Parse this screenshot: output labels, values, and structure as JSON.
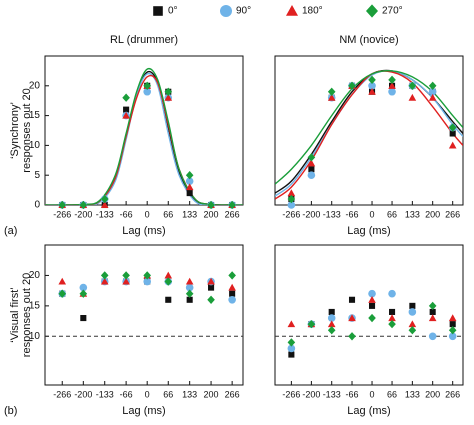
{
  "legend": [
    {
      "name": "0°",
      "color": "#111111",
      "marker": "square"
    },
    {
      "name": "90°",
      "color": "#6fb3e8",
      "marker": "circle"
    },
    {
      "name": "180°",
      "color": "#e02020",
      "marker": "triangle"
    },
    {
      "name": "270°",
      "color": "#1a9e3a",
      "marker": "diamond"
    }
  ],
  "chart_data": [
    {
      "type": "scatter",
      "title": "RL (drummer)",
      "xlabel": "Lag (ms)",
      "ylabel": [
        "‘Synchrony’",
        "responses out 20"
      ],
      "panel_label": "(a)",
      "x": [
        -266,
        -200,
        -133,
        -66,
        0,
        66,
        133,
        200,
        266
      ],
      "xlim": [
        -320,
        300
      ],
      "ylim": [
        0,
        25
      ],
      "xticks": [
        -266,
        -200,
        -133,
        -66,
        0,
        66,
        133,
        200,
        266
      ],
      "yticks": [
        0,
        5,
        10,
        15,
        20
      ],
      "fit_x": [
        -320,
        -266,
        -200,
        -150,
        -100,
        -66,
        -33,
        0,
        33,
        66,
        100,
        150,
        200,
        266,
        300
      ],
      "series": [
        {
          "values": [
            0,
            0,
            0,
            16,
            20,
            19,
            2,
            0,
            0
          ],
          "fit": [
            0,
            0,
            0.1,
            0.5,
            4.5,
            11.5,
            18.5,
            22.3,
            20.5,
            13,
            5.5,
            0.8,
            0.1,
            0,
            0
          ]
        },
        {
          "values": [
            0,
            0,
            1,
            15,
            19,
            18,
            4,
            0,
            0
          ],
          "fit": [
            0,
            0,
            0,
            0.4,
            4,
            11,
            18.5,
            22,
            20,
            12,
            5,
            0.6,
            0,
            0,
            0
          ]
        },
        {
          "values": [
            0,
            0,
            0,
            15,
            20,
            18,
            3,
            0,
            0
          ],
          "fit": [
            0,
            0,
            0.1,
            0.6,
            4.5,
            11.5,
            18,
            21.5,
            20.5,
            13.5,
            6,
            1,
            0.1,
            0,
            0
          ]
        },
        {
          "values": [
            0,
            0,
            1,
            18,
            20,
            19,
            5,
            0,
            0
          ],
          "fit": [
            0,
            0,
            0.1,
            0.7,
            5,
            12,
            19,
            22.8,
            21,
            14,
            6,
            1,
            0.1,
            0,
            0
          ]
        }
      ]
    },
    {
      "type": "scatter",
      "title": "NM (novice)",
      "xlabel": "Lag (ms)",
      "x": [
        -266,
        -200,
        -133,
        -66,
        0,
        66,
        133,
        200,
        266
      ],
      "xlim": [
        -320,
        300
      ],
      "ylim": [
        0,
        25
      ],
      "xticks": [
        -266,
        -200,
        -133,
        -66,
        0,
        66,
        133,
        200,
        266
      ],
      "fit_x": [
        -320,
        -266,
        -200,
        -133,
        -66,
        0,
        66,
        133,
        200,
        266,
        300
      ],
      "series": [
        {
          "values": [
            1,
            6,
            18,
            20,
            19,
            20,
            20,
            19,
            12
          ],
          "fit": [
            2,
            4,
            8.5,
            14,
            19,
            22,
            22.5,
            21,
            18,
            14,
            12
          ]
        },
        {
          "values": [
            0,
            5,
            18,
            20,
            20,
            19,
            20,
            19,
            13
          ],
          "fit": [
            1.5,
            3.5,
            8,
            13.5,
            18.5,
            21.8,
            22.5,
            21,
            18,
            13.5,
            11.5
          ]
        },
        {
          "values": [
            2,
            7,
            18,
            20,
            19,
            20,
            18,
            18,
            10
          ],
          "fit": [
            1,
            3,
            7.5,
            13.5,
            18.5,
            22,
            22.3,
            20.5,
            16.5,
            12,
            10
          ]
        },
        {
          "values": [
            1,
            8,
            19,
            20,
            21,
            21,
            20,
            20,
            13
          ],
          "fit": [
            3.5,
            6,
            10,
            15,
            19.5,
            22,
            22.5,
            21.5,
            19,
            15,
            13
          ]
        }
      ]
    },
    {
      "type": "scatter",
      "xlabel": "Lag (ms)",
      "ylabel": [
        "‘Visual first’",
        "responses out 20"
      ],
      "panel_label": "(b)",
      "x": [
        -266,
        -200,
        -133,
        -66,
        0,
        66,
        133,
        200,
        266
      ],
      "xlim": [
        -320,
        300
      ],
      "ylim": [
        2,
        25
      ],
      "xticks": [
        -266,
        -200,
        -133,
        -66,
        0,
        66,
        133,
        200,
        266
      ],
      "yticks": [
        10,
        15,
        20
      ],
      "hline": 10,
      "series": [
        {
          "values": [
            17,
            13,
            19,
            19,
            19,
            16,
            16,
            18,
            17
          ]
        },
        {
          "values": [
            17,
            18,
            19,
            19,
            19,
            19,
            18,
            19,
            16
          ]
        },
        {
          "values": [
            19,
            17,
            19,
            19,
            20,
            20,
            19,
            19,
            18
          ]
        },
        {
          "values": [
            17,
            17,
            20,
            20,
            20,
            19,
            17,
            16,
            20
          ]
        }
      ]
    },
    {
      "type": "scatter",
      "xlabel": "Lag (ms)",
      "x": [
        -266,
        -200,
        -133,
        -66,
        0,
        66,
        133,
        200,
        266
      ],
      "xlim": [
        -320,
        300
      ],
      "ylim": [
        2,
        25
      ],
      "xticks": [
        -266,
        -200,
        -133,
        -66,
        0,
        66,
        133,
        200,
        266
      ],
      "hline": 10,
      "series": [
        {
          "values": [
            7,
            12,
            14,
            16,
            15,
            14,
            15,
            14,
            12
          ]
        },
        {
          "values": [
            8,
            12,
            13,
            13,
            17,
            17,
            14,
            10,
            10
          ]
        },
        {
          "values": [
            12,
            12,
            12,
            13,
            16,
            13,
            12,
            13,
            13
          ]
        },
        {
          "values": [
            9,
            12,
            11,
            10,
            13,
            12,
            11,
            15,
            11
          ]
        }
      ]
    }
  ]
}
